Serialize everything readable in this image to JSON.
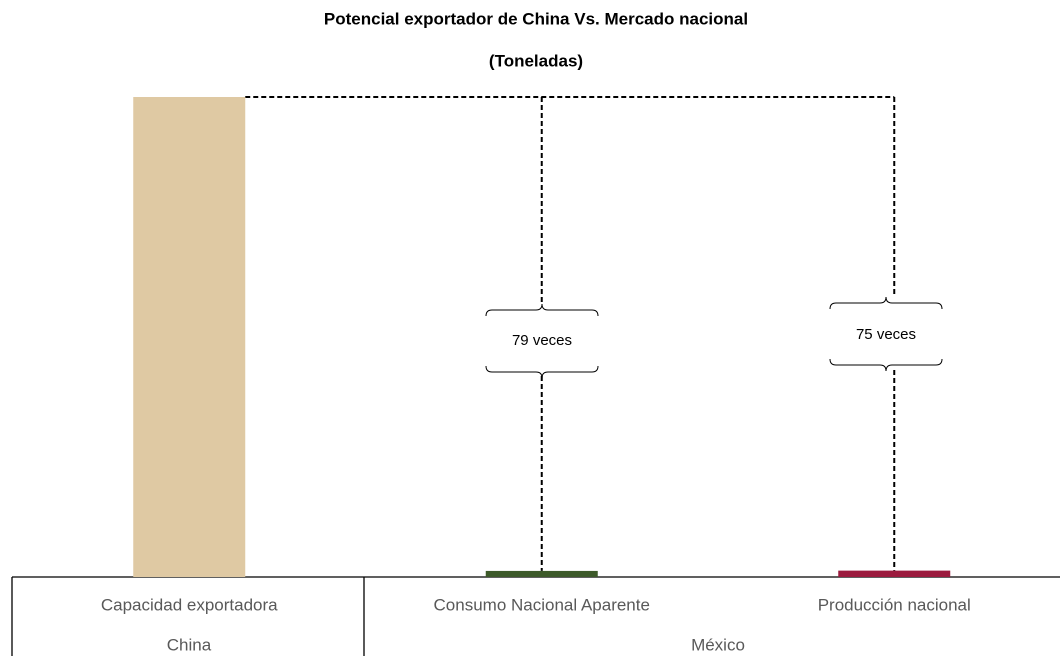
{
  "chart_data": {
    "type": "bar",
    "title": "Potencial exportador de China Vs. Mercado nacional",
    "subtitle": "(Toneladas)",
    "categories": [
      "Capacidad exportadora",
      "Consumo Nacional Aparente",
      "Producción nacional"
    ],
    "groups": [
      "China",
      "México"
    ],
    "values": [
      79,
      1,
      1.05
    ],
    "colors": [
      "#dfc9a3",
      "#3d5a2a",
      "#9b1b3e"
    ],
    "annotations": [
      "79 veces",
      "75 veces"
    ],
    "ylim": [
      0,
      79
    ],
    "grid": false
  }
}
